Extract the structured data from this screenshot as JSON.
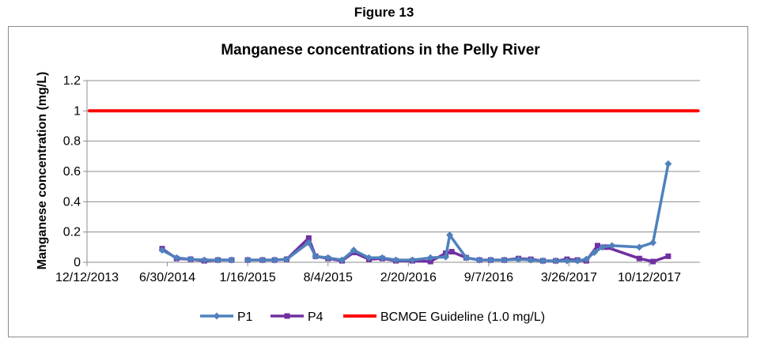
{
  "figure_label": "Figure 13",
  "chart_data": {
    "type": "line",
    "title": "Manganese concentrations in the Pelly River",
    "xlabel": "",
    "ylabel": "Manganese concentration (mg/L)",
    "xlim": [
      "2013-12-12",
      "2018-02-15"
    ],
    "ylim": [
      0,
      1.2
    ],
    "y_ticks": [
      0,
      0.2,
      0.4,
      0.6,
      0.8,
      1,
      1.2
    ],
    "y_tick_labels": [
      "0",
      "0.2",
      "0.4",
      "0.6",
      "0.8",
      "1",
      "1.2"
    ],
    "x_ticks": [
      "2013-12-12",
      "2014-06-30",
      "2015-01-16",
      "2015-08-04",
      "2016-02-20",
      "2016-09-07",
      "2017-03-26",
      "2017-10-12"
    ],
    "x_tick_labels": [
      "12/12/2013",
      "6/30/2014",
      "1/16/2015",
      "8/4/2015",
      "2/20/2016",
      "9/7/2016",
      "3/26/2017",
      "10/12/2017"
    ],
    "grid": "horizontal",
    "legend_position": "bottom",
    "series": [
      {
        "name": "P1",
        "color": "#4f81bd",
        "marker": "diamond",
        "segments": [
          [
            [
              "2014-06-17",
              0.08
            ],
            [
              "2014-07-23",
              0.03
            ],
            [
              "2014-08-27",
              0.02
            ],
            [
              "2014-09-30",
              0.015
            ],
            [
              "2014-11-03",
              0.015
            ],
            [
              "2014-12-07",
              0.015
            ]
          ],
          [
            [
              "2015-01-16",
              0.015
            ],
            [
              "2015-02-22",
              0.015
            ],
            [
              "2015-03-24",
              0.015
            ],
            [
              "2015-04-23",
              0.02
            ],
            [
              "2015-06-17",
              0.13
            ],
            [
              "2015-07-04",
              0.04
            ],
            [
              "2015-08-04",
              0.03
            ],
            [
              "2015-09-08",
              0.015
            ],
            [
              "2015-10-07",
              0.08
            ],
            [
              "2015-11-14",
              0.03
            ],
            [
              "2015-12-17",
              0.03
            ],
            [
              "2016-01-20",
              0.015
            ],
            [
              "2016-03-01",
              0.015
            ],
            [
              "2016-04-15",
              0.03
            ],
            [
              "2016-05-23",
              0.035
            ],
            [
              "2016-06-02",
              0.18
            ],
            [
              "2016-07-13",
              0.03
            ],
            [
              "2016-08-15",
              0.015
            ],
            [
              "2016-09-12",
              0.015
            ],
            [
              "2016-10-16",
              0.015
            ],
            [
              "2016-11-20",
              0.02
            ],
            [
              "2016-12-21",
              0.015
            ],
            [
              "2017-01-20",
              0.01
            ],
            [
              "2017-02-21",
              0.01
            ],
            [
              "2017-03-21",
              0.01
            ],
            [
              "2017-04-16",
              0.01
            ],
            [
              "2017-05-08",
              0.02
            ],
            [
              "2017-05-28",
              0.065
            ],
            [
              "2017-06-17",
              0.1
            ],
            [
              "2017-07-11",
              0.11
            ],
            [
              "2017-09-17",
              0.1
            ],
            [
              "2017-10-21",
              0.13
            ],
            [
              "2017-11-28",
              0.65
            ]
          ]
        ]
      },
      {
        "name": "P4",
        "color": "#7030a0",
        "marker": "square",
        "segments": [
          [
            [
              "2014-06-17",
              0.09
            ],
            [
              "2014-07-23",
              0.025
            ],
            [
              "2014-08-27",
              0.02
            ],
            [
              "2014-09-30",
              0.01
            ],
            [
              "2014-11-03",
              0.015
            ],
            [
              "2014-12-07",
              0.015
            ]
          ],
          [
            [
              "2015-01-16",
              0.015
            ],
            [
              "2015-02-22",
              0.015
            ],
            [
              "2015-03-24",
              0.015
            ],
            [
              "2015-04-23",
              0.02
            ],
            [
              "2015-06-17",
              0.16
            ],
            [
              "2015-07-04",
              0.04
            ],
            [
              "2015-08-04",
              0.025
            ],
            [
              "2015-09-08",
              0.01
            ],
            [
              "2015-10-07",
              0.065
            ],
            [
              "2015-11-14",
              0.02
            ],
            [
              "2015-12-17",
              0.025
            ],
            [
              "2016-01-20",
              0.01
            ],
            [
              "2016-03-01",
              0.01
            ],
            [
              "2016-04-15",
              0.005
            ],
            [
              "2016-05-23",
              0.06
            ],
            [
              "2016-06-07",
              0.07
            ],
            [
              "2016-07-13",
              0.03
            ],
            [
              "2016-08-15",
              0.015
            ],
            [
              "2016-09-12",
              0.015
            ],
            [
              "2016-10-16",
              0.015
            ],
            [
              "2016-11-20",
              0.025
            ],
            [
              "2016-12-21",
              0.02
            ],
            [
              "2017-01-20",
              0.01
            ],
            [
              "2017-02-21",
              0.01
            ],
            [
              "2017-03-21",
              0.02
            ],
            [
              "2017-04-16",
              0.015
            ],
            [
              "2017-05-08",
              0.01
            ],
            [
              "2017-06-05",
              0.11
            ],
            [
              "2017-06-27",
              0.1
            ],
            [
              "2017-09-17",
              0.025
            ],
            [
              "2017-10-21",
              0.005
            ],
            [
              "2017-11-28",
              0.04
            ]
          ]
        ]
      },
      {
        "name": "BCMOE Guideline (1.0 mg/L)",
        "color": "#ff0000",
        "marker": "none",
        "segments": [
          [
            [
              "2013-12-18",
              1.0
            ],
            [
              "2018-02-10",
              1.0
            ]
          ]
        ]
      }
    ]
  }
}
